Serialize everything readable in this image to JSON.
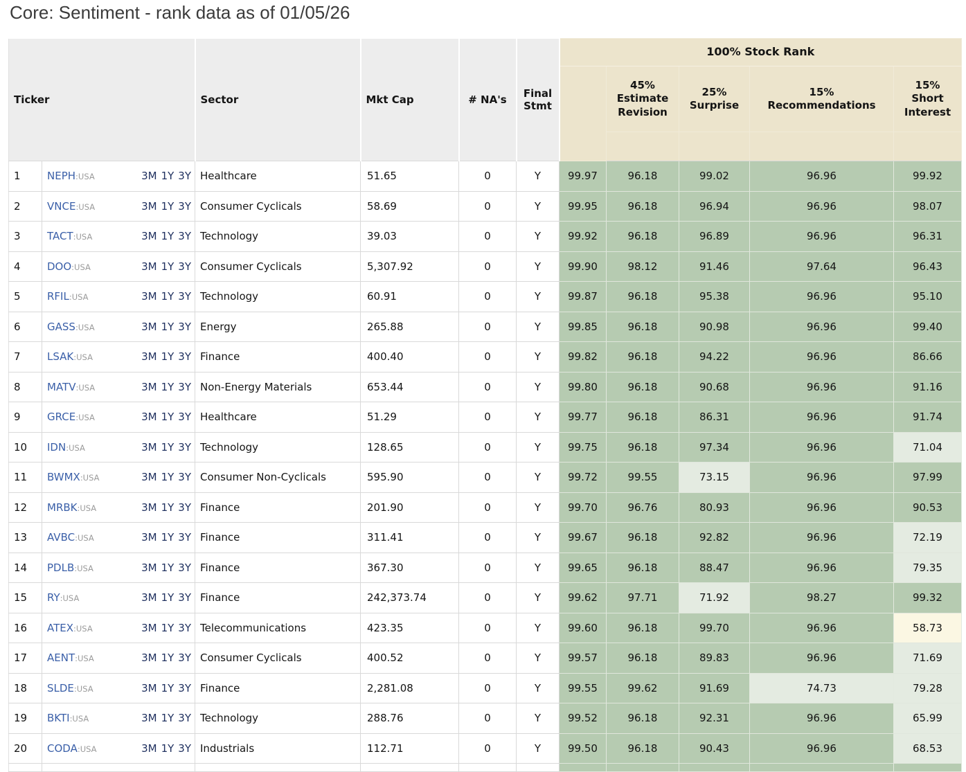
{
  "title": "Core: Sentiment - rank data as of 01/05/26",
  "colors": {
    "header_gray": "#ededed",
    "header_beige": "#ece4cc",
    "cell_green": "#b6cbb1",
    "cell_light_green": "#e4ebe1",
    "cell_cream": "#fbf7e3",
    "ticker_link_blue": "#3a5fa8",
    "country_gray": "#9a9a9a",
    "range_link_navy": "#1e2f5e"
  },
  "heatmap_thresholds": {
    "green_min": 80,
    "light_min": 60
  },
  "table": {
    "headers": {
      "ticker": "Ticker",
      "sector": "Sector",
      "mkt_cap": "Mkt Cap",
      "nas": "# NA's",
      "final_stmt": [
        "Final",
        "Stmt"
      ],
      "group": "100% Stock Rank",
      "estimate_revision": [
        "45%",
        "Estimate",
        "Revision"
      ],
      "surprise": [
        "25%",
        "Surprise"
      ],
      "recommendations": [
        "15%",
        "Recommendations"
      ],
      "short_interest": [
        "15%",
        "Short",
        "Interest"
      ]
    },
    "range_links": [
      "3M",
      "1Y",
      "3Y"
    ],
    "rows": [
      {
        "num": "1",
        "ticker": "NEPH",
        "country": ":USA",
        "sector": "Healthcare",
        "mkt_cap": "51.65",
        "nas": "0",
        "final_stmt": "Y",
        "rank": "99.97",
        "estimate_revision": "96.18",
        "surprise": "99.02",
        "recommendations": "96.96",
        "short_interest": "99.92"
      },
      {
        "num": "2",
        "ticker": "VNCE",
        "country": ":USA",
        "sector": "Consumer Cyclicals",
        "mkt_cap": "58.69",
        "nas": "0",
        "final_stmt": "Y",
        "rank": "99.95",
        "estimate_revision": "96.18",
        "surprise": "96.94",
        "recommendations": "96.96",
        "short_interest": "98.07"
      },
      {
        "num": "3",
        "ticker": "TACT",
        "country": ":USA",
        "sector": "Technology",
        "mkt_cap": "39.03",
        "nas": "0",
        "final_stmt": "Y",
        "rank": "99.92",
        "estimate_revision": "96.18",
        "surprise": "96.89",
        "recommendations": "96.96",
        "short_interest": "96.31"
      },
      {
        "num": "4",
        "ticker": "DOO",
        "country": ":USA",
        "sector": "Consumer Cyclicals",
        "mkt_cap": "5,307.92",
        "nas": "0",
        "final_stmt": "Y",
        "rank": "99.90",
        "estimate_revision": "98.12",
        "surprise": "91.46",
        "recommendations": "97.64",
        "short_interest": "96.43"
      },
      {
        "num": "5",
        "ticker": "RFIL",
        "country": ":USA",
        "sector": "Technology",
        "mkt_cap": "60.91",
        "nas": "0",
        "final_stmt": "Y",
        "rank": "99.87",
        "estimate_revision": "96.18",
        "surprise": "95.38",
        "recommendations": "96.96",
        "short_interest": "95.10"
      },
      {
        "num": "6",
        "ticker": "GASS",
        "country": ":USA",
        "sector": "Energy",
        "mkt_cap": "265.88",
        "nas": "0",
        "final_stmt": "Y",
        "rank": "99.85",
        "estimate_revision": "96.18",
        "surprise": "90.98",
        "recommendations": "96.96",
        "short_interest": "99.40"
      },
      {
        "num": "7",
        "ticker": "LSAK",
        "country": ":USA",
        "sector": "Finance",
        "mkt_cap": "400.40",
        "nas": "0",
        "final_stmt": "Y",
        "rank": "99.82",
        "estimate_revision": "96.18",
        "surprise": "94.22",
        "recommendations": "96.96",
        "short_interest": "86.66"
      },
      {
        "num": "8",
        "ticker": "MATV",
        "country": ":USA",
        "sector": "Non-Energy Materials",
        "mkt_cap": "653.44",
        "nas": "0",
        "final_stmt": "Y",
        "rank": "99.80",
        "estimate_revision": "96.18",
        "surprise": "90.68",
        "recommendations": "96.96",
        "short_interest": "91.16"
      },
      {
        "num": "9",
        "ticker": "GRCE",
        "country": ":USA",
        "sector": "Healthcare",
        "mkt_cap": "51.29",
        "nas": "0",
        "final_stmt": "Y",
        "rank": "99.77",
        "estimate_revision": "96.18",
        "surprise": "86.31",
        "recommendations": "96.96",
        "short_interest": "91.74"
      },
      {
        "num": "10",
        "ticker": "IDN",
        "country": ":USA",
        "sector": "Technology",
        "mkt_cap": "128.65",
        "nas": "0",
        "final_stmt": "Y",
        "rank": "99.75",
        "estimate_revision": "96.18",
        "surprise": "97.34",
        "recommendations": "96.96",
        "short_interest": "71.04"
      },
      {
        "num": "11",
        "ticker": "BWMX",
        "country": ":USA",
        "sector": "Consumer Non-Cyclicals",
        "mkt_cap": "595.90",
        "nas": "0",
        "final_stmt": "Y",
        "rank": "99.72",
        "estimate_revision": "99.55",
        "surprise": "73.15",
        "recommendations": "96.96",
        "short_interest": "97.99"
      },
      {
        "num": "12",
        "ticker": "MRBK",
        "country": ":USA",
        "sector": "Finance",
        "mkt_cap": "201.90",
        "nas": "0",
        "final_stmt": "Y",
        "rank": "99.70",
        "estimate_revision": "96.76",
        "surprise": "80.93",
        "recommendations": "96.96",
        "short_interest": "90.53"
      },
      {
        "num": "13",
        "ticker": "AVBC",
        "country": ":USA",
        "sector": "Finance",
        "mkt_cap": "311.41",
        "nas": "0",
        "final_stmt": "Y",
        "rank": "99.67",
        "estimate_revision": "96.18",
        "surprise": "92.82",
        "recommendations": "96.96",
        "short_interest": "72.19"
      },
      {
        "num": "14",
        "ticker": "PDLB",
        "country": ":USA",
        "sector": "Finance",
        "mkt_cap": "367.30",
        "nas": "0",
        "final_stmt": "Y",
        "rank": "99.65",
        "estimate_revision": "96.18",
        "surprise": "88.47",
        "recommendations": "96.96",
        "short_interest": "79.35"
      },
      {
        "num": "15",
        "ticker": "RY",
        "country": ":USA",
        "sector": "Finance",
        "mkt_cap": "242,373.74",
        "nas": "0",
        "final_stmt": "Y",
        "rank": "99.62",
        "estimate_revision": "97.71",
        "surprise": "71.92",
        "recommendations": "98.27",
        "short_interest": "99.32"
      },
      {
        "num": "16",
        "ticker": "ATEX",
        "country": ":USA",
        "sector": "Telecommunications",
        "mkt_cap": "423.35",
        "nas": "0",
        "final_stmt": "Y",
        "rank": "99.60",
        "estimate_revision": "96.18",
        "surprise": "99.70",
        "recommendations": "96.96",
        "short_interest": "58.73"
      },
      {
        "num": "17",
        "ticker": "AENT",
        "country": ":USA",
        "sector": "Consumer Cyclicals",
        "mkt_cap": "400.52",
        "nas": "0",
        "final_stmt": "Y",
        "rank": "99.57",
        "estimate_revision": "96.18",
        "surprise": "89.83",
        "recommendations": "96.96",
        "short_interest": "71.69"
      },
      {
        "num": "18",
        "ticker": "SLDE",
        "country": ":USA",
        "sector": "Finance",
        "mkt_cap": "2,281.08",
        "nas": "0",
        "final_stmt": "Y",
        "rank": "99.55",
        "estimate_revision": "99.62",
        "surprise": "91.69",
        "recommendations": "74.73",
        "short_interest": "79.28"
      },
      {
        "num": "19",
        "ticker": "BKTI",
        "country": ":USA",
        "sector": "Technology",
        "mkt_cap": "288.76",
        "nas": "0",
        "final_stmt": "Y",
        "rank": "99.52",
        "estimate_revision": "96.18",
        "surprise": "92.31",
        "recommendations": "96.96",
        "short_interest": "65.99"
      },
      {
        "num": "20",
        "ticker": "CODA",
        "country": ":USA",
        "sector": "Industrials",
        "mkt_cap": "112.71",
        "nas": "0",
        "final_stmt": "Y",
        "rank": "99.50",
        "estimate_revision": "96.18",
        "surprise": "90.43",
        "recommendations": "96.96",
        "short_interest": "68.53"
      }
    ],
    "partial_row_visible": true
  }
}
